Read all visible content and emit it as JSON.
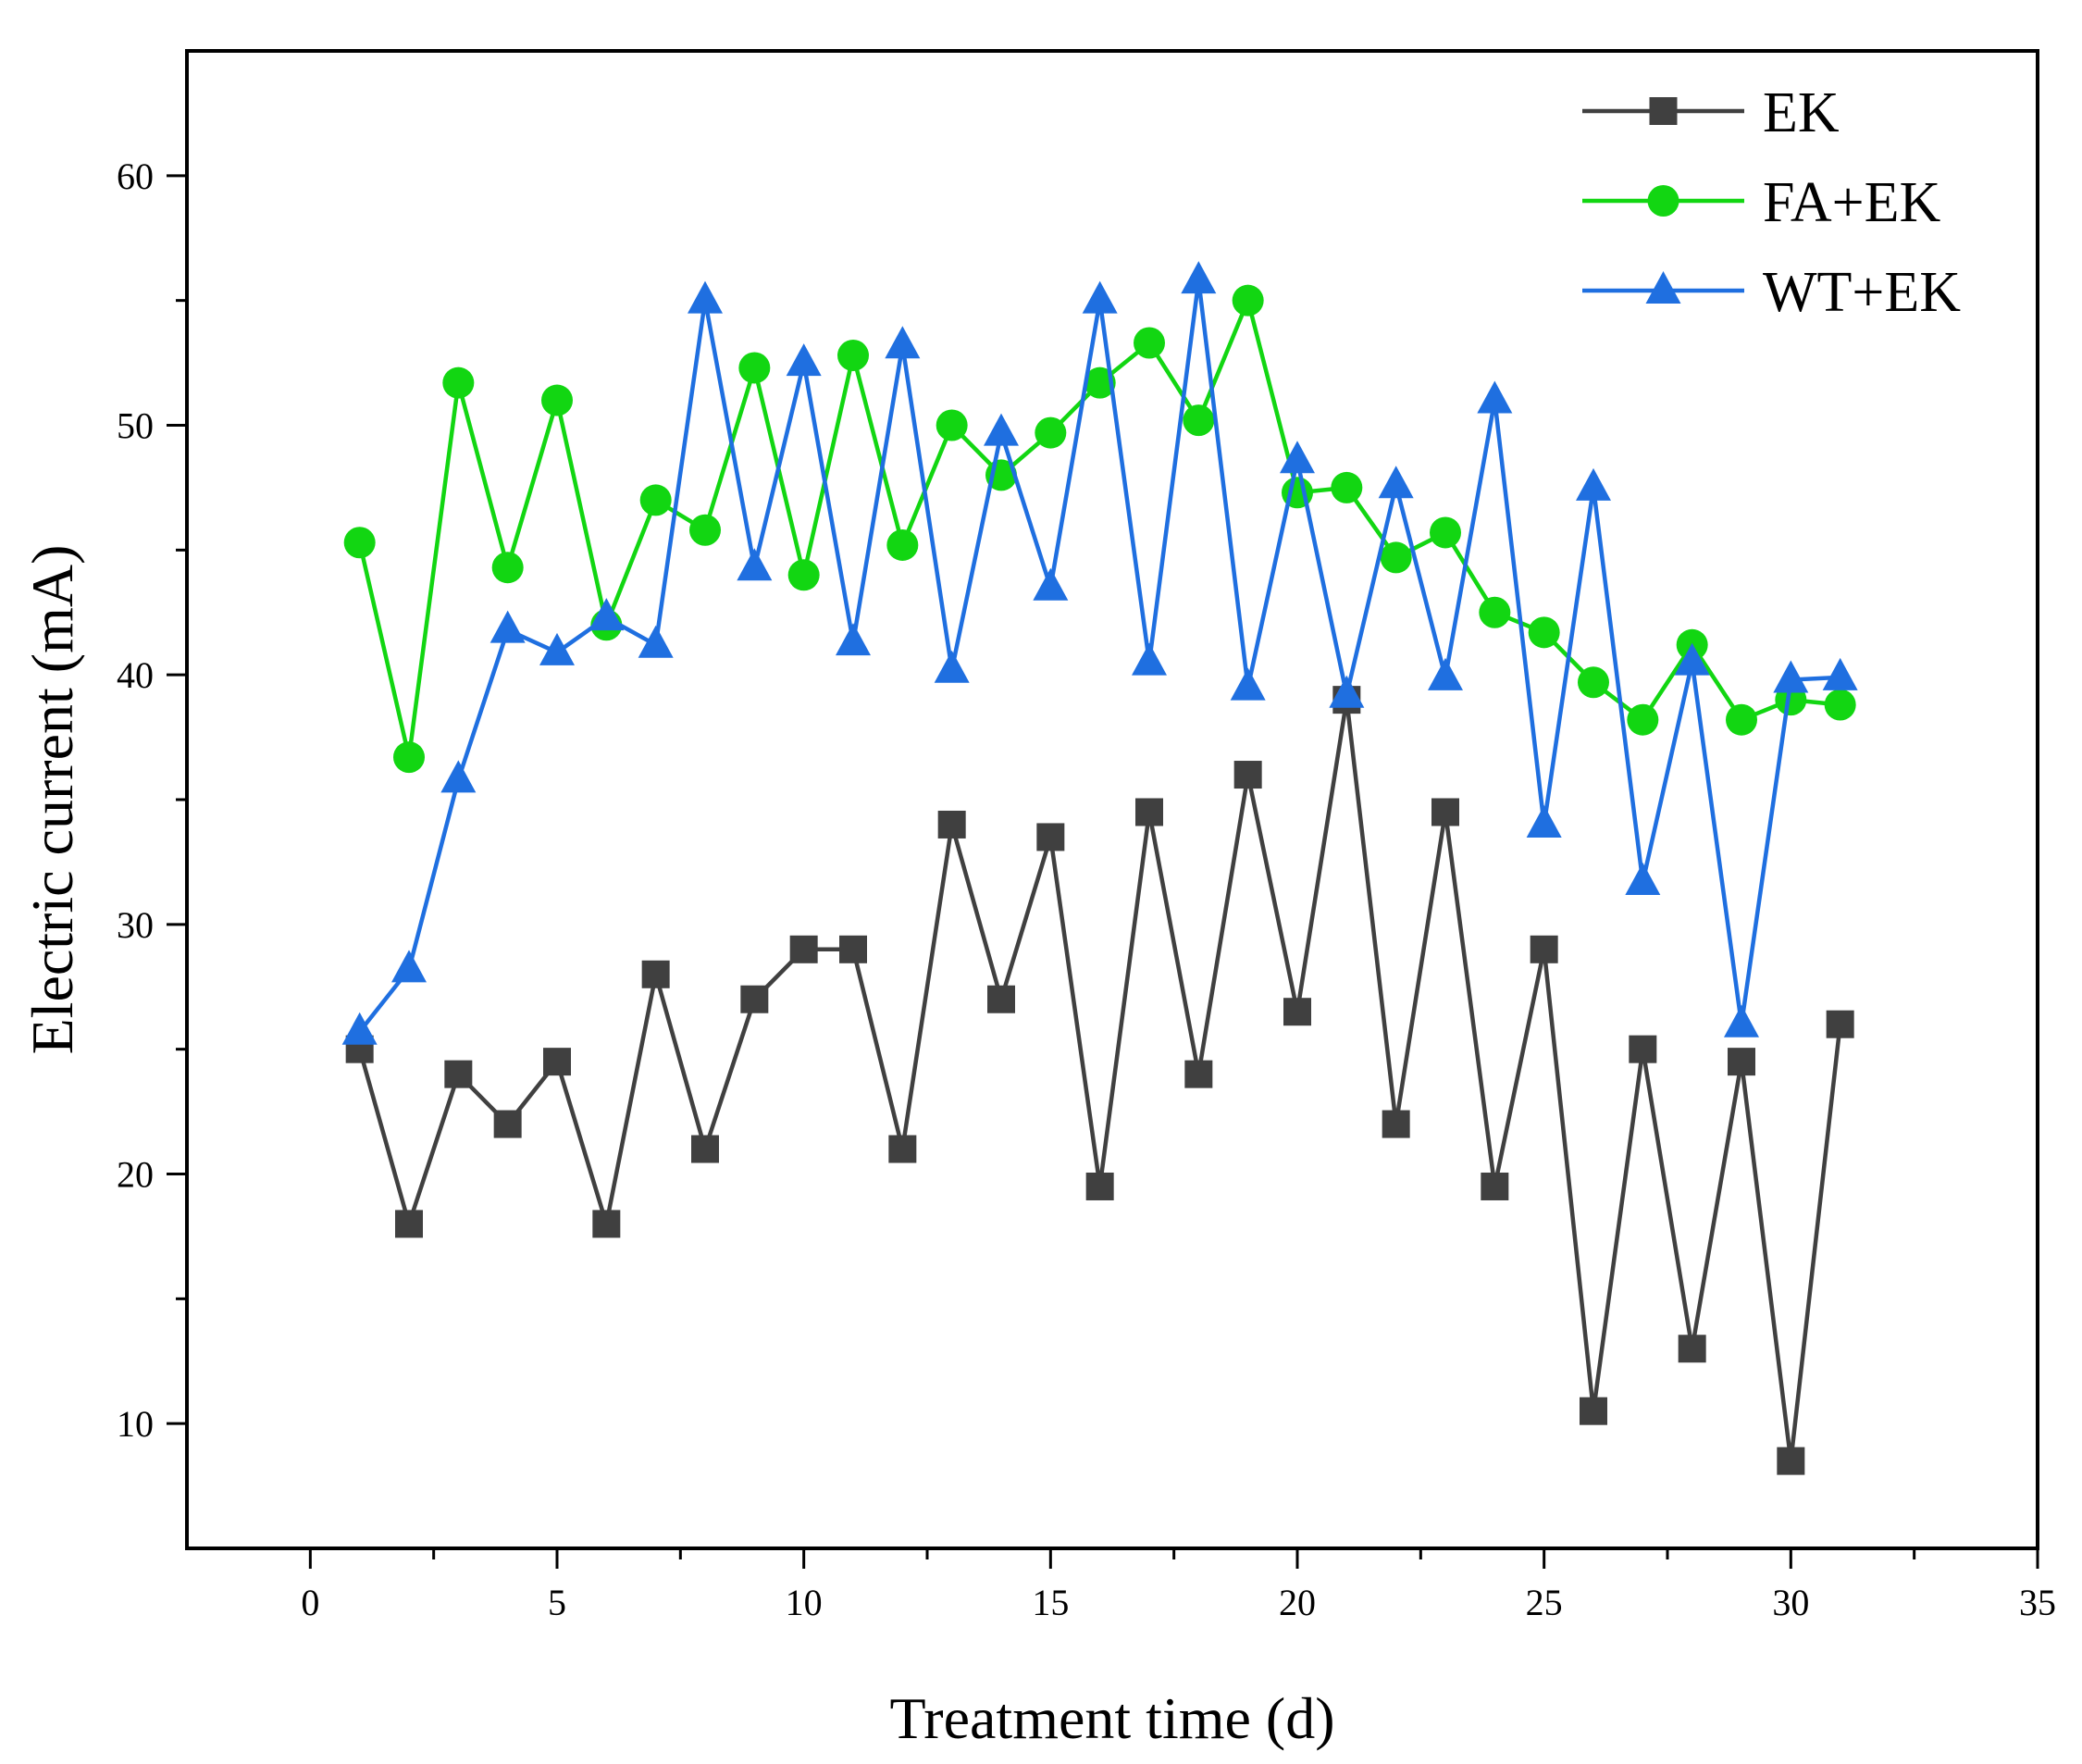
{
  "chart_data": {
    "type": "line",
    "title": "",
    "xlabel": "Treatment time (d)",
    "ylabel": "Electric current (mA)",
    "xlim": [
      -2.5,
      35
    ],
    "ylim": [
      5,
      65
    ],
    "x_ticks": [
      0,
      5,
      10,
      15,
      20,
      25,
      30,
      35
    ],
    "x_tick_labels": [
      "0",
      "5",
      "10",
      "15",
      "20",
      "25",
      "30",
      "35"
    ],
    "y_ticks": [
      10,
      20,
      30,
      40,
      50,
      60
    ],
    "y_tick_labels": [
      "10",
      "20",
      "30",
      "40",
      "50",
      "60"
    ],
    "x_minor_step": 2.5,
    "y_minor_step": 5,
    "grid": false,
    "legend_position": "top-right",
    "x": [
      1,
      2,
      3,
      4,
      5,
      6,
      7,
      8,
      9,
      10,
      11,
      12,
      13,
      14,
      15,
      16,
      17,
      18,
      19,
      20,
      21,
      22,
      23,
      24,
      25,
      26,
      27,
      28,
      29,
      30,
      31
    ],
    "series": [
      {
        "name": "EK",
        "color": "#404040",
        "marker": "square",
        "values": [
          25,
          18,
          24,
          22,
          24.5,
          18,
          28,
          21,
          27,
          29,
          29,
          21,
          34,
          27,
          33.5,
          19.5,
          34.5,
          24,
          36,
          26.5,
          39,
          22,
          34.5,
          19.5,
          29,
          10.5,
          25,
          13,
          24.5,
          8.5,
          26
        ]
      },
      {
        "name": "FA+EK",
        "color": "#12d612",
        "marker": "circle",
        "values": [
          45.3,
          36.7,
          51.7,
          44.3,
          51,
          42,
          47,
          45.8,
          52.3,
          44,
          52.8,
          45.2,
          50,
          48,
          49.7,
          51.7,
          53.3,
          50.2,
          55,
          47.3,
          47.5,
          44.7,
          45.7,
          42.5,
          41.7,
          39.7,
          38.2,
          41.2,
          38.2,
          39,
          38.8
        ]
      },
      {
        "name": "WT+EK",
        "color": "#1f6fe0",
        "marker": "triangle",
        "values": [
          25.7,
          28.2,
          35.8,
          41.8,
          40.9,
          42.3,
          41.2,
          55,
          44.3,
          52.5,
          41.3,
          53.2,
          40.2,
          49.7,
          43.5,
          55,
          40.5,
          55.8,
          39.5,
          48.6,
          39.2,
          47.6,
          39.9,
          51,
          34,
          47.5,
          31.7,
          40.5,
          26,
          39.8,
          39.9
        ]
      }
    ]
  }
}
